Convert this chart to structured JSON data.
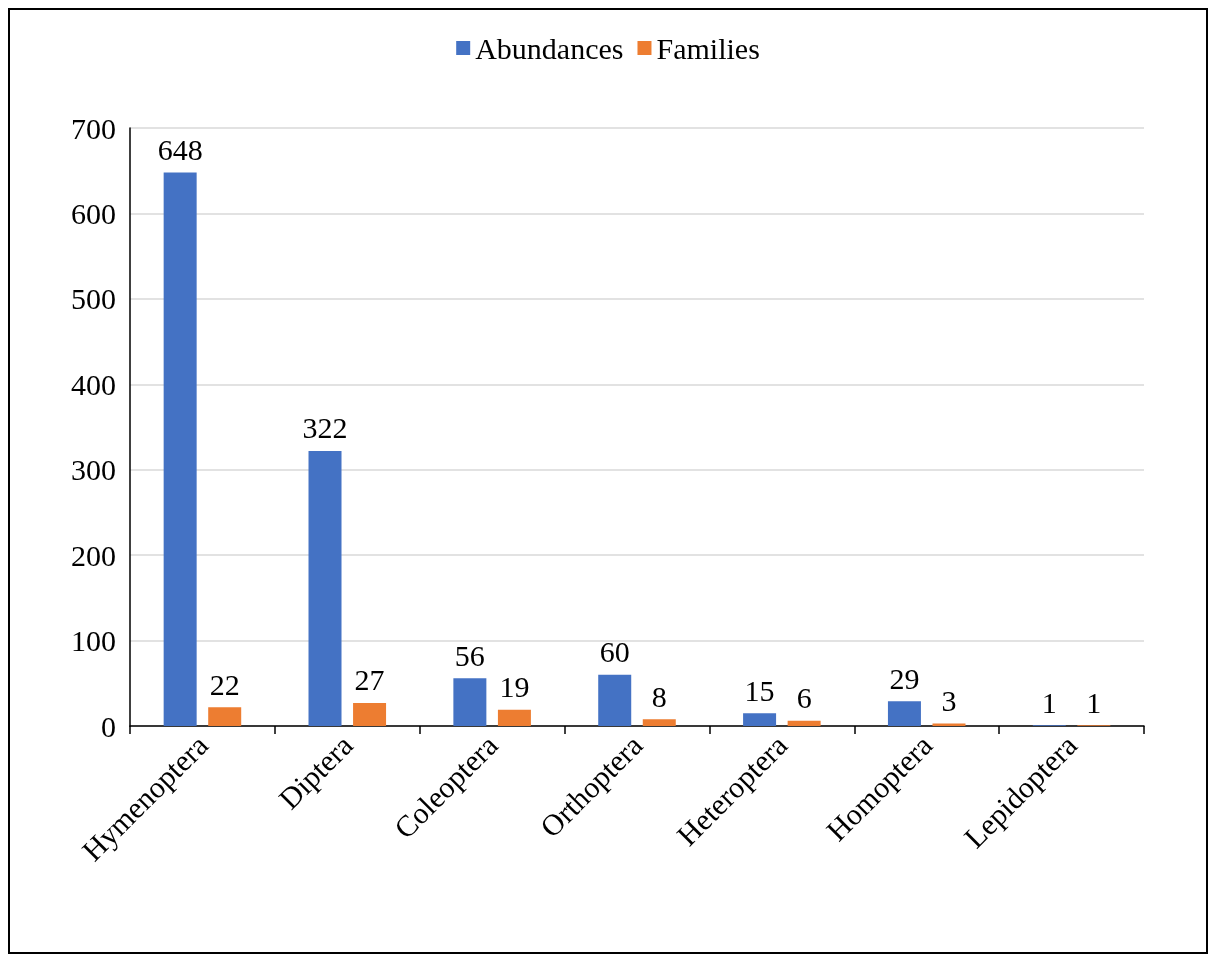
{
  "chart_data": {
    "type": "bar",
    "categories": [
      "Hymenoptera",
      "Diptera",
      "Coleoptera",
      "Orthoptera",
      "Heteroptera",
      "Homoptera",
      "Lepidoptera"
    ],
    "series": [
      {
        "name": "Abundances",
        "color": "#4472c4",
        "values": [
          648,
          322,
          56,
          60,
          15,
          29,
          1
        ]
      },
      {
        "name": "Families",
        "color": "#ed7d31",
        "values": [
          22,
          27,
          19,
          8,
          6,
          3,
          1
        ]
      }
    ],
    "ylim": [
      0,
      700
    ],
    "yticks": [
      0,
      100,
      200,
      300,
      400,
      500,
      600,
      700
    ],
    "grid": "y",
    "legend": "top",
    "data_labels": true
  }
}
